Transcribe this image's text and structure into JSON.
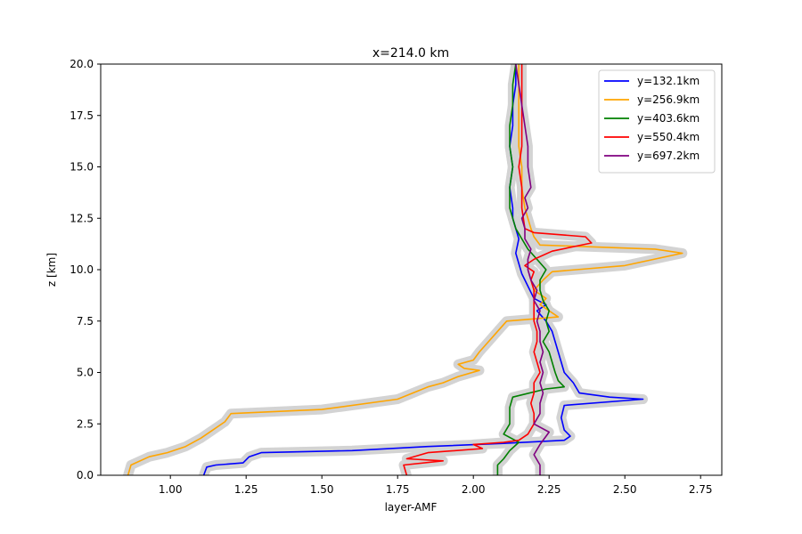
{
  "chart_data": {
    "type": "line",
    "title": "x=214.0 km",
    "xlabel": "layer-AMF",
    "ylabel": "z [km]",
    "xlim": [
      0.77,
      2.82
    ],
    "ylim": [
      0,
      20
    ],
    "xticks": [
      1.0,
      1.25,
      1.5,
      1.75,
      2.0,
      2.25,
      2.5,
      2.75
    ],
    "xtick_labels": [
      "1.00",
      "1.25",
      "1.50",
      "1.75",
      "2.00",
      "2.25",
      "2.50",
      "2.75"
    ],
    "yticks": [
      0,
      2.5,
      5,
      7.5,
      10,
      12.5,
      15,
      17.5,
      20
    ],
    "ytick_labels": [
      "0.0",
      "2.5",
      "5.0",
      "7.5",
      "10.0",
      "12.5",
      "15.0",
      "17.5",
      "20.0"
    ],
    "grid": false,
    "legend_position": "top-right",
    "uncertainty_band_color": "#d3d3d3",
    "series": [
      {
        "name": "y=132.1km",
        "color": "#0000ff",
        "points": [
          [
            1.11,
            0.0
          ],
          [
            1.12,
            0.4
          ],
          [
            1.15,
            0.5
          ],
          [
            1.24,
            0.6
          ],
          [
            1.26,
            0.9
          ],
          [
            1.3,
            1.1
          ],
          [
            1.6,
            1.2
          ],
          [
            1.85,
            1.4
          ],
          [
            2.1,
            1.55
          ],
          [
            2.3,
            1.7
          ],
          [
            2.32,
            1.9
          ],
          [
            2.3,
            2.2
          ],
          [
            2.29,
            2.8
          ],
          [
            2.3,
            3.4
          ],
          [
            2.56,
            3.7
          ],
          [
            2.45,
            3.8
          ],
          [
            2.35,
            4.0
          ],
          [
            2.33,
            4.5
          ],
          [
            2.3,
            5.0
          ],
          [
            2.29,
            5.5
          ],
          [
            2.28,
            6.0
          ],
          [
            2.27,
            6.5
          ],
          [
            2.26,
            7.0
          ],
          [
            2.24,
            7.5
          ],
          [
            2.21,
            8.0
          ],
          [
            2.24,
            8.3
          ],
          [
            2.2,
            8.6
          ],
          [
            2.18,
            9.2
          ],
          [
            2.16,
            9.8
          ],
          [
            2.15,
            10.3
          ],
          [
            2.14,
            10.8
          ],
          [
            2.15,
            11.5
          ],
          [
            2.14,
            12.0
          ],
          [
            2.13,
            12.5
          ],
          [
            2.13,
            13.0
          ],
          [
            2.12,
            14.0
          ],
          [
            2.13,
            15.0
          ],
          [
            2.12,
            16.0
          ],
          [
            2.13,
            17.0
          ],
          [
            2.13,
            18.0
          ],
          [
            2.14,
            19.0
          ],
          [
            2.14,
            20.0
          ]
        ]
      },
      {
        "name": "y=256.9km",
        "color": "#ffa500",
        "points": [
          [
            0.86,
            0.0
          ],
          [
            0.87,
            0.5
          ],
          [
            0.93,
            0.9
          ],
          [
            0.99,
            1.1
          ],
          [
            1.05,
            1.4
          ],
          [
            1.1,
            1.8
          ],
          [
            1.14,
            2.2
          ],
          [
            1.18,
            2.6
          ],
          [
            1.2,
            3.0
          ],
          [
            1.5,
            3.2
          ],
          [
            1.75,
            3.7
          ],
          [
            1.8,
            4.0
          ],
          [
            1.85,
            4.3
          ],
          [
            1.9,
            4.5
          ],
          [
            1.95,
            4.8
          ],
          [
            2.02,
            5.1
          ],
          [
            1.97,
            5.2
          ],
          [
            1.95,
            5.4
          ],
          [
            2.0,
            5.6
          ],
          [
            2.02,
            6.0
          ],
          [
            2.05,
            6.5
          ],
          [
            2.08,
            7.0
          ],
          [
            2.11,
            7.5
          ],
          [
            2.28,
            7.7
          ],
          [
            2.25,
            8.0
          ],
          [
            2.22,
            8.3
          ],
          [
            2.24,
            8.6
          ],
          [
            2.2,
            9.0
          ],
          [
            2.23,
            9.5
          ],
          [
            2.26,
            9.9
          ],
          [
            2.5,
            10.2
          ],
          [
            2.69,
            10.8
          ],
          [
            2.6,
            11.0
          ],
          [
            2.22,
            11.2
          ],
          [
            2.2,
            11.6
          ],
          [
            2.19,
            12.0
          ],
          [
            2.18,
            12.5
          ],
          [
            2.17,
            13.0
          ],
          [
            2.16,
            14.0
          ],
          [
            2.16,
            15.0
          ],
          [
            2.15,
            16.0
          ],
          [
            2.15,
            17.0
          ],
          [
            2.15,
            18.0
          ],
          [
            2.15,
            19.0
          ],
          [
            2.15,
            20.0
          ]
        ]
      },
      {
        "name": "y=403.6km",
        "color": "#008000",
        "points": [
          [
            2.08,
            0.0
          ],
          [
            2.08,
            0.5
          ],
          [
            2.1,
            0.8
          ],
          [
            2.12,
            1.2
          ],
          [
            2.15,
            1.6
          ],
          [
            2.1,
            2.0
          ],
          [
            2.12,
            2.5
          ],
          [
            2.12,
            3.3
          ],
          [
            2.13,
            3.8
          ],
          [
            2.24,
            4.2
          ],
          [
            2.3,
            4.3
          ],
          [
            2.28,
            4.6
          ],
          [
            2.27,
            5.0
          ],
          [
            2.26,
            5.5
          ],
          [
            2.25,
            6.0
          ],
          [
            2.23,
            6.5
          ],
          [
            2.25,
            7.0
          ],
          [
            2.24,
            7.5
          ],
          [
            2.25,
            8.0
          ],
          [
            2.23,
            8.5
          ],
          [
            2.22,
            9.0
          ],
          [
            2.22,
            9.5
          ],
          [
            2.24,
            10.0
          ],
          [
            2.21,
            10.5
          ],
          [
            2.18,
            11.0
          ],
          [
            2.16,
            11.5
          ],
          [
            2.14,
            12.0
          ],
          [
            2.13,
            12.5
          ],
          [
            2.12,
            13.0
          ],
          [
            2.12,
            14.0
          ],
          [
            2.13,
            15.0
          ],
          [
            2.12,
            16.0
          ],
          [
            2.12,
            17.0
          ],
          [
            2.13,
            18.0
          ],
          [
            2.13,
            19.0
          ],
          [
            2.14,
            20.0
          ]
        ]
      },
      {
        "name": "y=550.4km",
        "color": "#ff0000",
        "points": [
          [
            1.78,
            0.0
          ],
          [
            1.77,
            0.5
          ],
          [
            1.9,
            0.7
          ],
          [
            1.78,
            0.8
          ],
          [
            1.85,
            1.1
          ],
          [
            2.03,
            1.3
          ],
          [
            2.0,
            1.5
          ],
          [
            2.1,
            1.6
          ],
          [
            2.15,
            1.7
          ],
          [
            2.18,
            2.0
          ],
          [
            2.2,
            2.5
          ],
          [
            2.2,
            3.0
          ],
          [
            2.19,
            3.5
          ],
          [
            2.2,
            4.0
          ],
          [
            2.2,
            4.5
          ],
          [
            2.22,
            5.0
          ],
          [
            2.21,
            5.5
          ],
          [
            2.2,
            6.0
          ],
          [
            2.21,
            6.5
          ],
          [
            2.21,
            7.0
          ],
          [
            2.2,
            7.5
          ],
          [
            2.2,
            8.0
          ],
          [
            2.2,
            8.5
          ],
          [
            2.2,
            9.0
          ],
          [
            2.19,
            9.5
          ],
          [
            2.2,
            9.9
          ],
          [
            2.17,
            10.2
          ],
          [
            2.2,
            10.5
          ],
          [
            2.26,
            10.9
          ],
          [
            2.39,
            11.3
          ],
          [
            2.37,
            11.6
          ],
          [
            2.2,
            11.8
          ],
          [
            2.17,
            12.0
          ],
          [
            2.16,
            13.0
          ],
          [
            2.16,
            14.0
          ],
          [
            2.15,
            15.0
          ],
          [
            2.16,
            16.0
          ],
          [
            2.16,
            17.0
          ],
          [
            2.16,
            18.0
          ],
          [
            2.16,
            19.0
          ],
          [
            2.16,
            20.0
          ]
        ]
      },
      {
        "name": "y=697.2km",
        "color": "#800080",
        "points": [
          [
            2.22,
            0.0
          ],
          [
            2.22,
            0.5
          ],
          [
            2.2,
            1.0
          ],
          [
            2.22,
            1.5
          ],
          [
            2.25,
            2.1
          ],
          [
            2.2,
            2.5
          ],
          [
            2.22,
            3.0
          ],
          [
            2.22,
            3.5
          ],
          [
            2.23,
            4.0
          ],
          [
            2.22,
            4.5
          ],
          [
            2.23,
            5.0
          ],
          [
            2.22,
            5.5
          ],
          [
            2.23,
            6.0
          ],
          [
            2.22,
            6.5
          ],
          [
            2.22,
            7.0
          ],
          [
            2.21,
            7.5
          ],
          [
            2.22,
            8.0
          ],
          [
            2.2,
            8.5
          ],
          [
            2.21,
            9.0
          ],
          [
            2.19,
            9.5
          ],
          [
            2.18,
            10.0
          ],
          [
            2.18,
            10.5
          ],
          [
            2.19,
            11.0
          ],
          [
            2.17,
            11.5
          ],
          [
            2.17,
            12.0
          ],
          [
            2.16,
            12.5
          ],
          [
            2.18,
            13.0
          ],
          [
            2.17,
            13.5
          ],
          [
            2.19,
            14.0
          ],
          [
            2.18,
            15.0
          ],
          [
            2.18,
            16.0
          ],
          [
            2.17,
            17.0
          ],
          [
            2.16,
            18.0
          ],
          [
            2.15,
            19.0
          ],
          [
            2.14,
            20.0
          ]
        ]
      }
    ]
  }
}
